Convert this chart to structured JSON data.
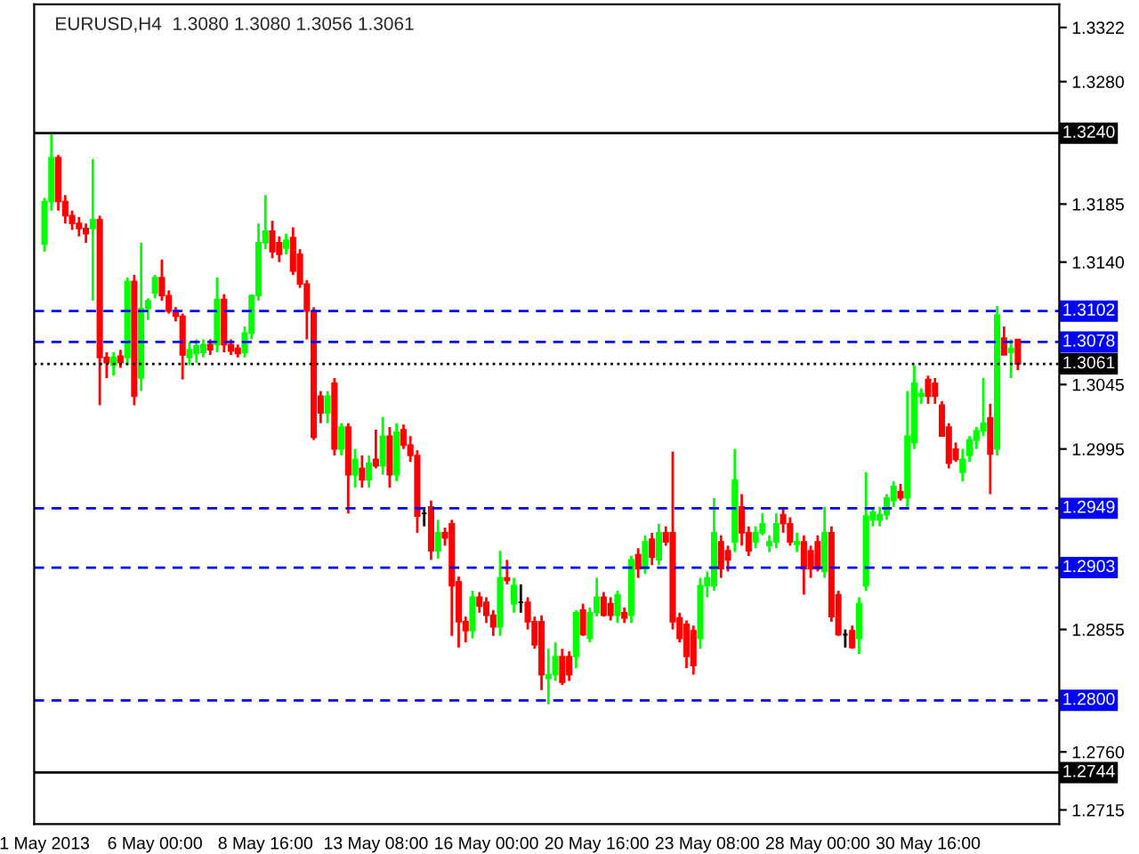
{
  "chart_data": {
    "type": "candlestick",
    "title": "EURUSD,H4  1.3080 1.3080 1.3056 1.3061",
    "categories": [
      "1 May 2013",
      null,
      null,
      null,
      null,
      null,
      null,
      null,
      null,
      null,
      null,
      null,
      null,
      null,
      null,
      null,
      "6 May 00:00",
      null,
      null,
      null,
      null,
      null,
      null,
      null,
      null,
      null,
      null,
      null,
      null,
      null,
      null,
      null,
      "8 May 16:00",
      null,
      null,
      null,
      null,
      null,
      null,
      null,
      null,
      null,
      null,
      null,
      null,
      null,
      null,
      null,
      "13 May 08:00",
      null,
      null,
      null,
      null,
      null,
      null,
      null,
      null,
      null,
      null,
      null,
      null,
      null,
      null,
      null,
      "16 May 00:00",
      null,
      null,
      null,
      null,
      null,
      null,
      null,
      null,
      null,
      null,
      null,
      null,
      null,
      null,
      null,
      "20 May 16:00",
      null,
      null,
      null,
      null,
      null,
      null,
      null,
      null,
      null,
      null,
      null,
      null,
      null,
      null,
      null,
      "23 May 08:00",
      null,
      null,
      null,
      null,
      null,
      null,
      null,
      null,
      null,
      null,
      null,
      null,
      null,
      null,
      null,
      "28 May 00:00",
      null,
      null,
      null,
      null,
      null,
      null,
      null,
      null,
      null,
      null,
      null,
      null,
      null,
      null,
      null,
      "30 May 16:00",
      null,
      null,
      null,
      null,
      null,
      null,
      null,
      null,
      null,
      null,
      null,
      null,
      null
    ],
    "ohlc": [
      [
        1.3154,
        1.319,
        1.3148,
        1.3187
      ],
      [
        1.3187,
        1.324,
        1.318,
        1.3221
      ],
      [
        1.3221,
        1.3223,
        1.318,
        1.3187
      ],
      [
        1.3187,
        1.3192,
        1.317,
        1.3176
      ],
      [
        1.3176,
        1.318,
        1.3165,
        1.317
      ],
      [
        1.317,
        1.3175,
        1.316,
        1.3166
      ],
      [
        1.3166,
        1.317,
        1.3155,
        1.3162
      ],
      [
        1.3166,
        1.322,
        1.311,
        1.3173
      ],
      [
        1.3173,
        1.3176,
        1.3029,
        1.3066
      ],
      [
        1.3066,
        1.307,
        1.305,
        1.3062
      ],
      [
        1.306,
        1.307,
        1.3052,
        1.3066
      ],
      [
        1.3067,
        1.3072,
        1.3058,
        1.3062
      ],
      [
        1.3066,
        1.3128,
        1.306,
        1.3125
      ],
      [
        1.3125,
        1.313,
        1.3029,
        1.3036
      ],
      [
        1.305,
        1.3155,
        1.304,
        1.3104
      ],
      [
        1.3104,
        1.3112,
        1.3095,
        1.311
      ],
      [
        1.3116,
        1.313,
        1.3112,
        1.3128
      ],
      [
        1.3128,
        1.3142,
        1.311,
        1.3114
      ],
      [
        1.3114,
        1.3118,
        1.31,
        1.3102
      ],
      [
        1.3102,
        1.3105,
        1.3094,
        1.3098
      ],
      [
        1.3098,
        1.31,
        1.3049,
        1.3068
      ],
      [
        1.3066,
        1.3078,
        1.306,
        1.3072
      ],
      [
        1.3069,
        1.308,
        1.3062,
        1.3075
      ],
      [
        1.307,
        1.308,
        1.3066,
        1.3076
      ],
      [
        1.3076,
        1.308,
        1.3068,
        1.3072
      ],
      [
        1.3076,
        1.3128,
        1.307,
        1.3111
      ],
      [
        1.3111,
        1.3115,
        1.307,
        1.3076
      ],
      [
        1.3076,
        1.308,
        1.3068,
        1.3071
      ],
      [
        1.3073,
        1.3076,
        1.3066,
        1.3069
      ],
      [
        1.307,
        1.309,
        1.3066,
        1.3085
      ],
      [
        1.3085,
        1.3115,
        1.308,
        1.3114
      ],
      [
        1.3114,
        1.317,
        1.311,
        1.3155
      ],
      [
        1.3155,
        1.3192,
        1.315,
        1.3164
      ],
      [
        1.3164,
        1.3172,
        1.3143,
        1.3148
      ],
      [
        1.3155,
        1.316,
        1.314,
        1.3146
      ],
      [
        1.3151,
        1.3162,
        1.3146,
        1.3157
      ],
      [
        1.3159,
        1.3167,
        1.313,
        1.3133
      ],
      [
        1.3146,
        1.315,
        1.312,
        1.3123
      ],
      [
        1.3123,
        1.3126,
        1.308,
        1.3102
      ],
      [
        1.3102,
        1.3105,
        1.3002,
        1.3004
      ],
      [
        1.3036,
        1.304,
        1.3015,
        1.3023
      ],
      [
        1.3023,
        1.304,
        1.3015,
        1.3036
      ],
      [
        1.3046,
        1.305,
        1.299,
        1.2995
      ],
      [
        1.2995,
        1.3015,
        1.299,
        1.3012
      ],
      [
        1.3012,
        1.3015,
        1.2945,
        1.2975
      ],
      [
        1.2975,
        1.2995,
        1.2965,
        1.2987
      ],
      [
        1.298,
        1.299,
        1.2965,
        1.2971
      ],
      [
        1.2971,
        1.299,
        1.2965,
        1.2984
      ],
      [
        1.2987,
        1.301,
        1.298,
        1.2982
      ],
      [
        1.2982,
        1.302,
        1.2975,
        1.3005
      ],
      [
        1.3005,
        1.3012,
        1.2965,
        1.2975
      ],
      [
        1.2975,
        1.3015,
        1.297,
        1.3008
      ],
      [
        1.301,
        1.3014,
        1.2995,
        1.2998
      ],
      [
        1.2998,
        1.3005,
        1.2985,
        1.299
      ],
      [
        1.299,
        1.2994,
        1.293,
        1.2943
      ],
      [
        1.2945,
        1.295,
        1.2935,
        1.2945
      ],
      [
        1.295,
        1.2955,
        1.2909,
        1.2916
      ],
      [
        1.2916,
        1.294,
        1.291,
        1.293
      ],
      [
        1.293,
        1.2934,
        1.292,
        1.2926
      ],
      [
        1.2937,
        1.294,
        1.285,
        1.2889
      ],
      [
        1.2892,
        1.2896,
        1.2841,
        1.2861
      ],
      [
        1.2861,
        1.2865,
        1.2845,
        1.2854
      ],
      [
        1.2854,
        1.2885,
        1.2848,
        1.288
      ],
      [
        1.288,
        1.2884,
        1.2868,
        1.2873
      ],
      [
        1.2876,
        1.288,
        1.286,
        1.2866
      ],
      [
        1.2866,
        1.287,
        1.285,
        1.2857
      ],
      [
        1.2857,
        1.2916,
        1.285,
        1.2895
      ],
      [
        1.2895,
        1.2909,
        1.289,
        1.2893
      ],
      [
        1.2875,
        1.2895,
        1.2868,
        1.2889
      ],
      [
        1.2876,
        1.289,
        1.2868,
        1.2876
      ],
      [
        1.2876,
        1.288,
        1.2855,
        1.2861
      ],
      [
        1.2861,
        1.2865,
        1.284,
        1.2843
      ],
      [
        1.2861,
        1.2866,
        1.2808,
        1.282
      ],
      [
        1.2817,
        1.284,
        1.2797,
        1.282
      ],
      [
        1.282,
        1.2845,
        1.2815,
        1.2834
      ],
      [
        1.2834,
        1.284,
        1.2812,
        1.2814
      ],
      [
        1.2834,
        1.2838,
        1.2815,
        1.282
      ],
      [
        1.2834,
        1.287,
        1.2825,
        1.2868
      ],
      [
        1.287,
        1.2875,
        1.285,
        1.2851
      ],
      [
        1.2848,
        1.2872,
        1.2845,
        1.2868
      ],
      [
        1.2868,
        1.2895,
        1.2865,
        1.288
      ],
      [
        1.288,
        1.2884,
        1.2865,
        1.2866
      ],
      [
        1.2875,
        1.288,
        1.2862,
        1.2866
      ],
      [
        1.2866,
        1.2885,
        1.286,
        1.2882
      ],
      [
        1.2868,
        1.2872,
        1.286,
        1.2864
      ],
      [
        1.2866,
        1.2912,
        1.286,
        1.2909
      ],
      [
        1.2913,
        1.2918,
        1.2895,
        1.2902
      ],
      [
        1.2902,
        1.2928,
        1.2898,
        1.2923
      ],
      [
        1.2925,
        1.293,
        1.2905,
        1.2911
      ],
      [
        1.2909,
        1.2937,
        1.2905,
        1.293
      ],
      [
        1.293,
        1.2935,
        1.292,
        1.2923
      ],
      [
        1.293,
        1.2993,
        1.2855,
        1.2861
      ],
      [
        1.2864,
        1.2868,
        1.2845,
        1.2848
      ],
      [
        1.2859,
        1.2862,
        1.2825,
        1.2834
      ],
      [
        1.2854,
        1.2858,
        1.282,
        1.2827
      ],
      [
        1.2848,
        1.2895,
        1.284,
        1.2889
      ],
      [
        1.2889,
        1.29,
        1.288,
        1.2895
      ],
      [
        1.2889,
        1.2957,
        1.2885,
        1.293
      ],
      [
        1.2923,
        1.2928,
        1.2895,
        1.2902
      ],
      [
        1.2916,
        1.292,
        1.29,
        1.2909
      ],
      [
        1.2923,
        1.2995,
        1.2915,
        1.2971
      ],
      [
        1.295,
        1.296,
        1.292,
        1.293
      ],
      [
        1.293,
        1.2935,
        1.2912,
        1.2916
      ],
      [
        1.2923,
        1.2935,
        1.2918,
        1.293
      ],
      [
        1.293,
        1.2945,
        1.2928,
        1.2937
      ],
      [
        1.292,
        1.2928,
        1.2915,
        1.2923
      ],
      [
        1.2923,
        1.2945,
        1.2918,
        1.2937
      ],
      [
        1.2944,
        1.295,
        1.293,
        1.2937
      ],
      [
        1.2937,
        1.2942,
        1.292,
        1.2923
      ],
      [
        1.2921,
        1.293,
        1.2915,
        1.2923
      ],
      [
        1.2923,
        1.2928,
        1.2882,
        1.2902
      ],
      [
        1.2916,
        1.292,
        1.2895,
        1.2902
      ],
      [
        1.2923,
        1.2928,
        1.29,
        1.2902
      ],
      [
        1.29,
        1.295,
        1.2895,
        1.293
      ],
      [
        1.293,
        1.2935,
        1.2861,
        1.2865
      ],
      [
        1.2882,
        1.2885,
        1.285,
        1.2851
      ],
      [
        1.2851,
        1.2855,
        1.2841,
        1.2851
      ],
      [
        1.2854,
        1.2858,
        1.284,
        1.2841
      ],
      [
        1.2848,
        1.288,
        1.2836,
        1.2875
      ],
      [
        1.2889,
        1.2977,
        1.2885,
        1.2943
      ],
      [
        1.294,
        1.295,
        1.2935,
        1.2946
      ],
      [
        1.294,
        1.295,
        1.2935,
        1.2944
      ],
      [
        1.2944,
        1.296,
        1.294,
        1.2957
      ],
      [
        1.2955,
        1.297,
        1.295,
        1.2966
      ],
      [
        1.2962,
        1.2968,
        1.2955,
        1.2957
      ],
      [
        1.2957,
        1.304,
        1.295,
        1.3005
      ],
      [
        1.3,
        1.306,
        1.2995,
        1.3046
      ],
      [
        1.3036,
        1.3042,
        1.303,
        1.3038
      ],
      [
        1.3049,
        1.3052,
        1.303,
        1.3036
      ],
      [
        1.3046,
        1.305,
        1.303,
        1.3036
      ],
      [
        1.3029,
        1.3032,
        1.3005,
        1.3005
      ],
      [
        1.3012,
        1.3015,
        1.298,
        1.2984
      ],
      [
        1.2995,
        1.3,
        1.2985,
        1.2987
      ],
      [
        1.2977,
        1.2995,
        1.297,
        1.2987
      ],
      [
        1.299,
        1.3005,
        1.2985,
        1.3002
      ],
      [
        1.3002,
        1.3012,
        1.2995,
        1.3009
      ],
      [
        1.3009,
        1.305,
        1.3005,
        1.3015
      ],
      [
        1.3019,
        1.303,
        1.296,
        1.2991
      ],
      [
        1.2995,
        1.3106,
        1.299,
        1.3099
      ],
      [
        1.3081,
        1.309,
        1.3068,
        1.3068
      ],
      [
        1.307,
        1.308,
        1.305,
        1.3073
      ],
      [
        1.308,
        1.308,
        1.3056,
        1.3061
      ]
    ],
    "colors": [
      "#00ff00",
      "#00ff00",
      "#ff0000",
      "#ff0000",
      "#ff0000",
      "#ff0000",
      "#ff0000",
      "#00ff00",
      "#ff0000",
      "#ff0000",
      "#00ff00",
      "#ff0000",
      "#00ff00",
      "#ff0000",
      "#00ff00",
      "#00ff00",
      "#00ff00",
      "#ff0000",
      "#ff0000",
      "#ff0000",
      "#ff0000",
      "#00ff00",
      "#00ff00",
      "#00ff00",
      "#ff0000",
      "#00ff00",
      "#ff0000",
      "#ff0000",
      "#ff0000",
      "#00ff00",
      "#00ff00",
      "#00ff00",
      "#00ff00",
      "#ff0000",
      "#ff0000",
      "#00ff00",
      "#ff0000",
      "#ff0000",
      "#ff0000",
      "#ff0000",
      "#ff0000",
      "#00ff00",
      "#ff0000",
      "#00ff00",
      "#ff0000",
      "#00ff00",
      "#ff0000",
      "#00ff00",
      "#ff0000",
      "#00ff00",
      "#ff0000",
      "#00ff00",
      "#ff0000",
      "#ff0000",
      "#ff0000",
      "#000000",
      "#ff0000",
      "#00ff00",
      "#ff0000",
      "#ff0000",
      "#ff0000",
      "#ff0000",
      "#00ff00",
      "#ff0000",
      "#ff0000",
      "#ff0000",
      "#00ff00",
      "#ff0000",
      "#00ff00",
      "#000000",
      "#ff0000",
      "#ff0000",
      "#ff0000",
      "#00ff00",
      "#00ff00",
      "#ff0000",
      "#ff0000",
      "#00ff00",
      "#ff0000",
      "#00ff00",
      "#00ff00",
      "#ff0000",
      "#ff0000",
      "#00ff00",
      "#ff0000",
      "#00ff00",
      "#ff0000",
      "#00ff00",
      "#ff0000",
      "#00ff00",
      "#ff0000",
      "#ff0000",
      "#ff0000",
      "#ff0000",
      "#ff0000",
      "#00ff00",
      "#00ff00",
      "#00ff00",
      "#ff0000",
      "#ff0000",
      "#00ff00",
      "#ff0000",
      "#ff0000",
      "#00ff00",
      "#00ff00",
      "#00ff00",
      "#00ff00",
      "#ff0000",
      "#ff0000",
      "#00ff00",
      "#ff0000",
      "#ff0000",
      "#ff0000",
      "#00ff00",
      "#ff0000",
      "#ff0000",
      "#000000",
      "#ff0000",
      "#00ff00",
      "#00ff00",
      "#00ff00",
      "#00ff00",
      "#00ff00",
      "#00ff00",
      "#ff0000",
      "#00ff00",
      "#00ff00",
      "#00ff00",
      "#ff0000",
      "#ff0000",
      "#ff0000",
      "#ff0000",
      "#ff0000",
      "#00ff00",
      "#00ff00",
      "#00ff00",
      "#00ff00",
      "#ff0000",
      "#00ff00",
      "#ff0000",
      "#00ff00",
      "#ff0000"
    ],
    "ylim": [
      1.2704,
      1.334
    ],
    "yticks": [
      {
        "value": 1.2715,
        "label": "1.2715"
      },
      {
        "value": 1.276,
        "label": "1.2760"
      },
      {
        "value": 1.2855,
        "label": "1.2855"
      },
      {
        "value": 1.2995,
        "label": "1.2995"
      },
      {
        "value": 1.3045,
        "label": "1.3045"
      },
      {
        "value": 1.314,
        "label": "1.3140"
      },
      {
        "value": 1.3185,
        "label": "1.3185"
      },
      {
        "value": 1.328,
        "label": "1.3280"
      },
      {
        "value": 1.3322,
        "label": "1.3322"
      }
    ],
    "ref_lines": [
      {
        "axis": "y",
        "value": 1.324,
        "label": "1.3240",
        "color": "#000000",
        "line_style": "solid"
      },
      {
        "axis": "y",
        "value": 1.3102,
        "label": "1.3102",
        "color": "#0000ff",
        "line_style": "dashed"
      },
      {
        "axis": "y",
        "value": 1.3078,
        "label": "1.3078",
        "color": "#0000ff",
        "line_style": "dashed"
      },
      {
        "axis": "y",
        "value": 1.3061,
        "label": "1.3061",
        "color": "#000000",
        "line_style": "dotted"
      },
      {
        "axis": "y",
        "value": 1.2949,
        "label": "1.2949",
        "color": "#0000ff",
        "line_style": "dashed"
      },
      {
        "axis": "y",
        "value": 1.2903,
        "label": "1.2903",
        "color": "#0000ff",
        "line_style": "dashed"
      },
      {
        "axis": "y",
        "value": 1.28,
        "label": "1.2800",
        "color": "#0000ff",
        "line_style": "dashed"
      },
      {
        "axis": "y",
        "value": 1.2744,
        "label": "1.2744",
        "color": "#000000",
        "line_style": "solid"
      }
    ],
    "grid": false
  }
}
